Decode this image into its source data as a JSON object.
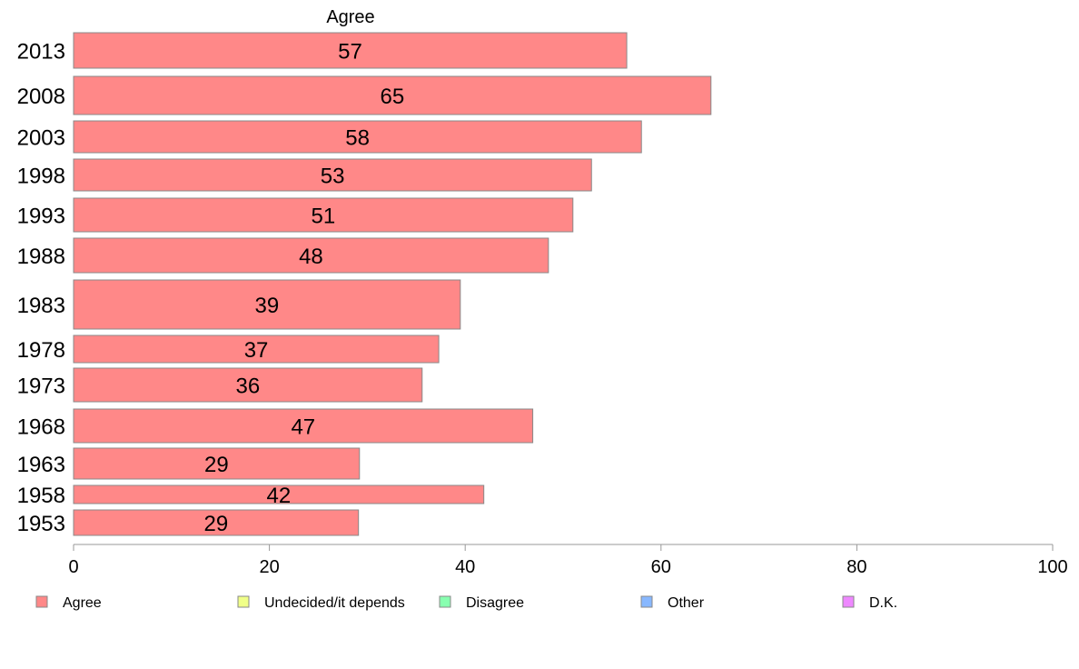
{
  "chart_data": {
    "type": "bar",
    "orientation": "horizontal",
    "title": "Agree",
    "categories": [
      "2013",
      "2008",
      "2003",
      "1998",
      "1993",
      "1988",
      "1983",
      "1978",
      "1973",
      "1968",
      "1963",
      "1958",
      "1953"
    ],
    "series": [
      {
        "name": "Agree",
        "color": "#ff8888",
        "values": [
          56.5,
          65.1,
          58.0,
          52.9,
          51.0,
          48.5,
          39.5,
          37.3,
          35.6,
          46.9,
          29.2,
          41.9,
          29.1
        ]
      }
    ],
    "data_labels": [
      "57",
      "65",
      "58",
      "53",
      "51",
      "48",
      "39",
      "37",
      "36",
      "47",
      "29",
      "42",
      "29"
    ],
    "xlim": [
      0,
      100
    ],
    "xticks": [
      0,
      20,
      40,
      60,
      80,
      100
    ],
    "grid": false,
    "legend": {
      "position": "bottom",
      "entries": [
        {
          "label": "Agree",
          "color": "#ff8888"
        },
        {
          "label": "Undecided/it depends",
          "color": "#f0ff88"
        },
        {
          "label": "Disagree",
          "color": "#88ffb0"
        },
        {
          "label": "Other",
          "color": "#88b8ff"
        },
        {
          "label": "D.K.",
          "color": "#ee88ff"
        }
      ]
    }
  }
}
